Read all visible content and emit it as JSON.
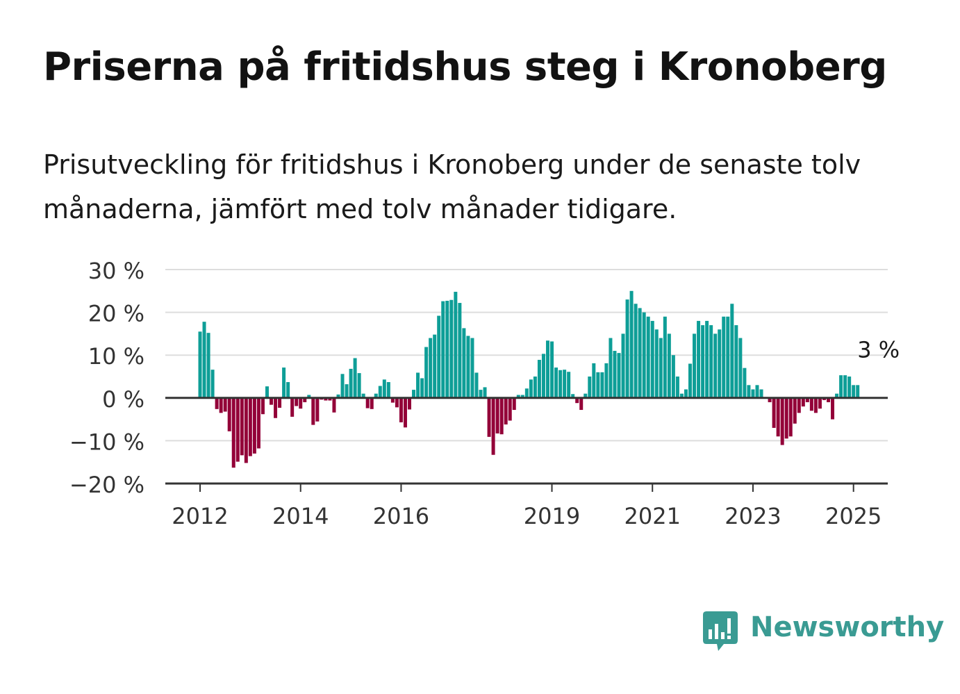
{
  "title": "Priserna på fritidshus steg i Kronoberg",
  "subtitle": "Prisutveckling för fritidshus i Kronoberg under de senaste tolv månaderna, jämfört med tolv månader tidigare.",
  "brand": {
    "name": "Newsworthy",
    "color": "#3a9b93",
    "icon": "bar-chart-speech-bubble-icon"
  },
  "colors": {
    "positive": "#0e9e97",
    "negative": "#930038",
    "grid": "#dddddd",
    "axis": "#333333"
  },
  "chart_data": {
    "type": "bar",
    "ylim": [
      -20,
      30
    ],
    "y_ticks": [
      30,
      20,
      10,
      0,
      -10,
      -20
    ],
    "y_tick_labels": [
      "30 %",
      "20 %",
      "10 %",
      "0 %",
      "−10 %",
      "−20 %"
    ],
    "x_ticks": [
      {
        "label": "2012",
        "index": 0
      },
      {
        "label": "2014",
        "index": 24
      },
      {
        "label": "2016",
        "index": 48
      },
      {
        "label": "2019",
        "index": 84
      },
      {
        "label": "2021",
        "index": 108
      },
      {
        "label": "2023",
        "index": 132
      },
      {
        "label": "2025",
        "index": 156
      }
    ],
    "grid": true,
    "start": "2012-01",
    "end": "2025-02",
    "frequency": "monthly",
    "values": [
      15.5,
      17.8,
      15.2,
      6.6,
      -2.6,
      -3.5,
      -3.2,
      -7.8,
      -16.3,
      -14.9,
      -13.4,
      -15.2,
      -13.6,
      -13.0,
      -11.8,
      -3.8,
      2.7,
      -1.6,
      -4.7,
      -2.3,
      7.1,
      3.7,
      -4.4,
      -1.9,
      -2.5,
      -1.0,
      0.7,
      -6.3,
      -5.5,
      -0.4,
      -0.6,
      -0.6,
      -3.4,
      0.8,
      5.6,
      3.2,
      6.8,
      9.3,
      5.8,
      1.0,
      -2.4,
      -2.6,
      1.0,
      2.8,
      4.3,
      3.7,
      -1.1,
      -2.2,
      -5.7,
      -6.9,
      -2.7,
      1.9,
      5.9,
      4.6,
      11.9,
      14.0,
      14.8,
      19.2,
      22.6,
      22.7,
      22.9,
      24.8,
      22.2,
      16.3,
      14.5,
      14.0,
      5.9,
      1.9,
      2.5,
      -9.1,
      -13.3,
      -8.3,
      -8.5,
      -6.2,
      -5.3,
      -2.8,
      0.7,
      0.7,
      2.2,
      4.3,
      5.0,
      8.9,
      10.3,
      13.4,
      13.2,
      7.1,
      6.5,
      6.6,
      6.1,
      0.9,
      -1.2,
      -2.8,
      1.0,
      5.0,
      8.1,
      6.0,
      6.0,
      8.1,
      14.0,
      11.0,
      10.5,
      15.0,
      23.0,
      25.0,
      22.0,
      21.0,
      20.0,
      19.0,
      18.0,
      16.0,
      14.0,
      19.0,
      15.0,
      10.0,
      5.0,
      1.0,
      2.0,
      8.0,
      15.0,
      18.0,
      17.0,
      18.0,
      17.0,
      15.0,
      16.0,
      19.0,
      19.0,
      22.0,
      17.0,
      14.0,
      7.0,
      3.0,
      2.0,
      3.0,
      2.0,
      0.0,
      -1.0,
      -7.0,
      -9.0,
      -11.0,
      -9.5,
      -9.0,
      -6.0,
      -3.5,
      -2.0,
      -1.0,
      -3.0,
      -3.5,
      -2.5,
      -0.5,
      -1.0,
      -5.0,
      1.0,
      5.3,
      5.3,
      5.0,
      3.0,
      3.0
    ],
    "last_value_label": "3 %"
  }
}
